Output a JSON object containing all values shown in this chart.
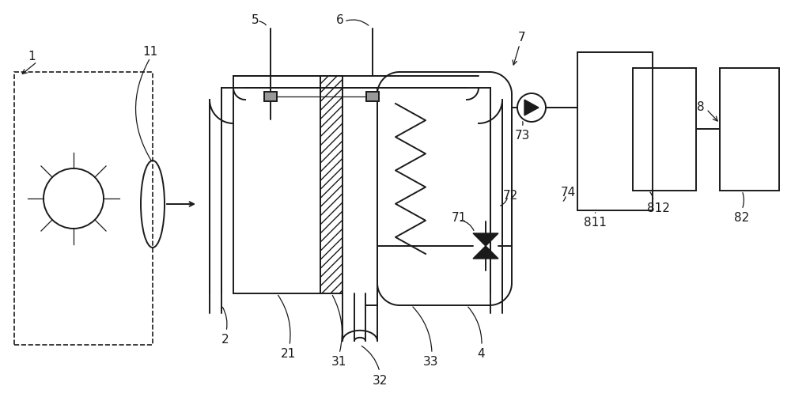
{
  "bg_color": "#ffffff",
  "line_color": "#1a1a1a",
  "lw": 1.4,
  "lw_thin": 0.9,
  "fig_w": 10.0,
  "fig_h": 5.26
}
